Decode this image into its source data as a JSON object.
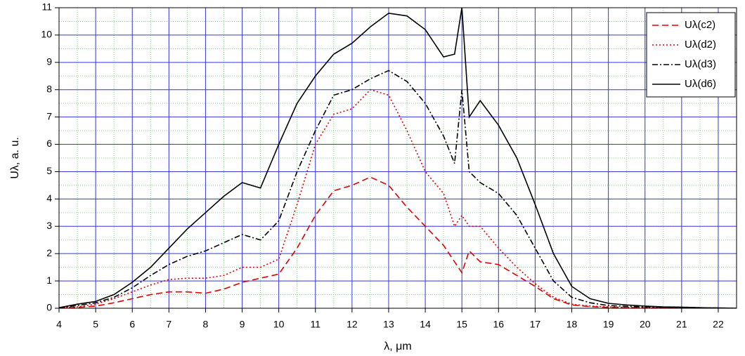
{
  "chart_data": {
    "type": "line",
    "xlabel": "λ, μm",
    "ylabel": "Uλ, a. u.",
    "x": [
      4,
      4.5,
      5,
      5.5,
      6,
      6.5,
      7,
      7.5,
      8,
      8.5,
      9,
      9.5,
      10,
      10.5,
      11,
      11.5,
      12,
      12.5,
      13,
      13.5,
      14,
      14.5,
      14.8,
      15,
      15.2,
      15.5,
      16,
      16.5,
      17,
      17.5,
      18,
      18.5,
      19,
      19.5,
      20,
      20.5,
      21,
      21.5,
      22,
      22.5
    ],
    "series": [
      {
        "name": "Uλ(c2)",
        "color": "#e00000",
        "style": "dash",
        "values": [
          0.01,
          0.03,
          0.08,
          0.2,
          0.35,
          0.5,
          0.6,
          0.6,
          0.55,
          0.7,
          0.95,
          1.1,
          1.25,
          2.2,
          3.4,
          4.3,
          4.5,
          4.8,
          4.5,
          3.7,
          3.0,
          2.3,
          1.7,
          1.3,
          2.1,
          1.7,
          1.6,
          1.2,
          0.8,
          0.35,
          0.12,
          0.06,
          0.03,
          0.02,
          0.02,
          0.01,
          0.01,
          0,
          0,
          0
        ]
      },
      {
        "name": "Uλ(d2)",
        "color": "#e00000",
        "style": "dot",
        "values": [
          0.01,
          0.05,
          0.15,
          0.35,
          0.6,
          0.85,
          1.05,
          1.1,
          1.1,
          1.2,
          1.5,
          1.5,
          1.8,
          3.8,
          6.0,
          7.1,
          7.3,
          8.0,
          7.8,
          6.5,
          5.0,
          4.2,
          3.0,
          3.4,
          3.0,
          3.0,
          2.2,
          1.5,
          0.9,
          0.4,
          0.15,
          0.08,
          0.05,
          0.03,
          0.02,
          0.02,
          0.01,
          0.01,
          0,
          0
        ]
      },
      {
        "name": "Uλ(d3)",
        "color": "#000000",
        "style": "dashdot",
        "values": [
          0.02,
          0.1,
          0.2,
          0.4,
          0.75,
          1.2,
          1.6,
          1.9,
          2.1,
          2.4,
          2.7,
          2.5,
          3.2,
          5.0,
          6.5,
          7.8,
          8.0,
          8.4,
          8.7,
          8.3,
          7.5,
          6.3,
          5.3,
          8.0,
          5.0,
          4.6,
          4.2,
          3.4,
          2.2,
          1.0,
          0.4,
          0.2,
          0.1,
          0.07,
          0.05,
          0.04,
          0.03,
          0.02,
          0.01,
          0
        ]
      },
      {
        "name": "Uλ(d6)",
        "color": "#000000",
        "style": "solid",
        "values": [
          0.02,
          0.15,
          0.25,
          0.5,
          0.95,
          1.5,
          2.2,
          2.9,
          3.5,
          4.1,
          4.6,
          4.4,
          6.0,
          7.5,
          8.5,
          9.3,
          9.7,
          10.3,
          10.8,
          10.7,
          10.2,
          9.2,
          9.3,
          11,
          7.0,
          7.6,
          6.7,
          5.5,
          3.8,
          2.0,
          0.8,
          0.35,
          0.18,
          0.12,
          0.08,
          0.05,
          0.04,
          0.02,
          0.01,
          0
        ]
      }
    ],
    "xlim": [
      4,
      22.5
    ],
    "ylim": [
      0,
      11
    ],
    "xticks": [
      4,
      5,
      6,
      7,
      8,
      9,
      10,
      11,
      12,
      13,
      14,
      15,
      16,
      17,
      18,
      19,
      20,
      21,
      22
    ],
    "yticks": [
      0,
      1,
      2,
      3,
      4,
      5,
      6,
      7,
      8,
      9,
      10,
      11
    ],
    "grid": true,
    "grid_color": "#3a3adc",
    "minor_grid": true,
    "minor_grid_color": "#7fd07f",
    "legend": "top-right"
  }
}
